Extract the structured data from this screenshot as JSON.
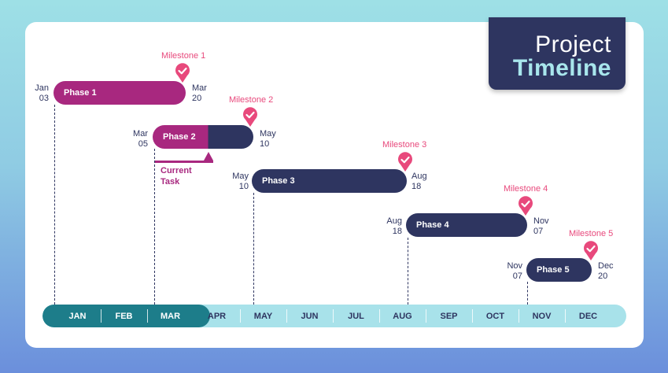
{
  "title": {
    "line1": "Project",
    "line2": "Timeline"
  },
  "phases": [
    {
      "label": "Phase 1",
      "start_month": "Jan",
      "start_day": "03",
      "end_month": "Mar",
      "end_day": "20"
    },
    {
      "label": "Phase 2",
      "start_month": "Mar",
      "start_day": "05",
      "end_month": "May",
      "end_day": "10"
    },
    {
      "label": "Phase 3",
      "start_month": "May",
      "start_day": "10",
      "end_month": "Aug",
      "end_day": "18"
    },
    {
      "label": "Phase 4",
      "start_month": "Aug",
      "start_day": "18",
      "end_month": "Nov",
      "end_day": "07"
    },
    {
      "label": "Phase 5",
      "start_month": "Nov",
      "start_day": "07",
      "end_month": "Dec",
      "end_day": "20"
    }
  ],
  "milestones": [
    "Milestone 1",
    "Milestone 2",
    "Milestone 3",
    "Milestone 4",
    "Milestone 5"
  ],
  "current_task": {
    "line1": "Current",
    "line2": "Task"
  },
  "months": [
    "JAN",
    "FEB",
    "MAR",
    "APR",
    "MAY",
    "JUN",
    "JUL",
    "AUG",
    "SEP",
    "OCT",
    "NOV",
    "DEC"
  ],
  "colors": {
    "magenta": "#a8287f",
    "navy": "#2e3560",
    "milestone": "#e8497c",
    "teal": "#1d7d8a",
    "light_teal": "#a8e2ea"
  }
}
